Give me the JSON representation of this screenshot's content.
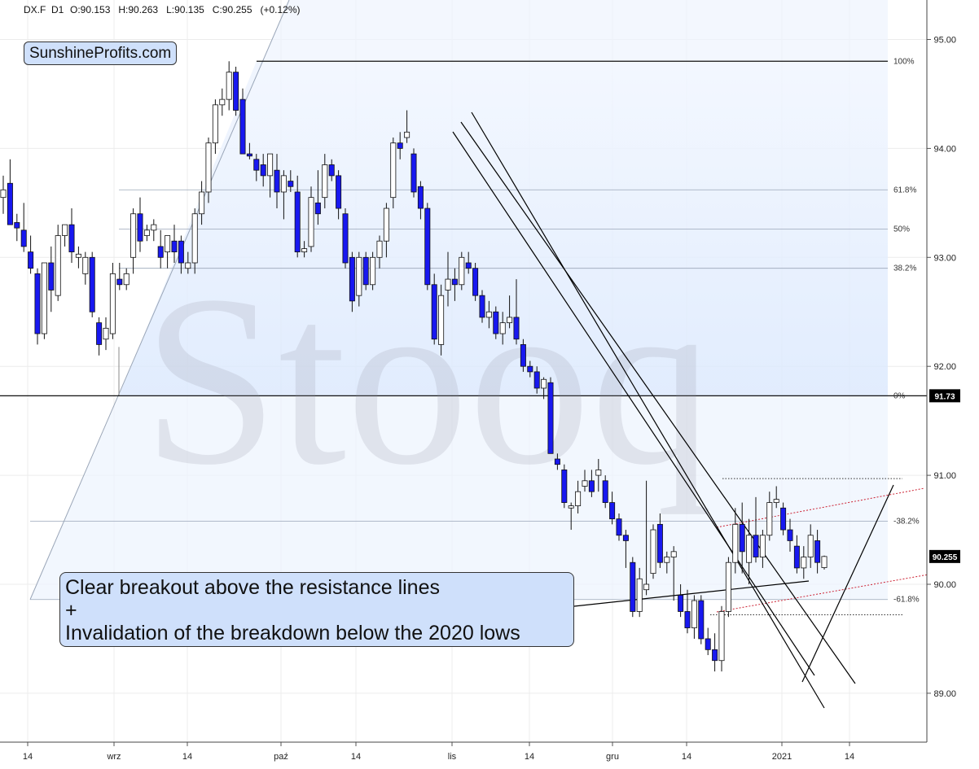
{
  "header": {
    "symbol": "DX.F",
    "interval": "D1",
    "ohlc": "O:90.153   H:90.263   L:90.135   C:90.255   (+0.12%)"
  },
  "logo": "SunshineProfits.com",
  "watermark": "Stooq",
  "callout": {
    "line1": "Clear breakout above the resistance lines",
    "line2": "+",
    "line3": "Invalidation of the breakdown below the 2020 lows"
  },
  "colors": {
    "bull_fill": "#ffffff",
    "bear_fill": "#1818f0",
    "fib_band": "#e8f1fe",
    "trend_line": "#000000",
    "channel_line": "#cc2233",
    "price_badge": "#000000"
  },
  "chart_data": {
    "type": "candlestick",
    "y_axis": {
      "ticks": [
        "95.00",
        "94.00",
        "93.00",
        "92.00",
        "91.00",
        "90.00",
        "89.00"
      ],
      "ylim": [
        88.6,
        95.3
      ]
    },
    "x_axis": {
      "ticks": [
        "14",
        "wrz",
        "14",
        "paź",
        "14",
        "lis",
        "14",
        "gru",
        "14",
        "2021",
        "14"
      ]
    },
    "fib_levels": [
      {
        "label": "100%",
        "value": 94.8
      },
      {
        "label": "61.8%",
        "value": 93.62
      },
      {
        "label": "50%",
        "value": 93.26
      },
      {
        "label": "38.2%",
        "value": 92.9
      },
      {
        "label": "0%",
        "value": 91.73
      },
      {
        "label": "-38.2%",
        "value": 90.58
      },
      {
        "label": "-61.8%",
        "value": 89.86
      }
    ],
    "badges": [
      {
        "label": "91.73",
        "value": 91.73
      },
      {
        "label": "90.255",
        "value": 90.255
      }
    ],
    "candles": [
      {
        "o": 93.55,
        "h": 93.75,
        "l": 93.4,
        "c": 93.62
      },
      {
        "o": 93.68,
        "h": 93.9,
        "l": 93.3,
        "c": 93.3
      },
      {
        "o": 93.32,
        "h": 93.4,
        "l": 93.15,
        "c": 93.27
      },
      {
        "o": 93.25,
        "h": 93.5,
        "l": 93.05,
        "c": 93.1
      },
      {
        "o": 93.05,
        "h": 93.2,
        "l": 92.85,
        "c": 92.9
      },
      {
        "o": 92.85,
        "h": 92.9,
        "l": 92.2,
        "c": 92.3
      },
      {
        "o": 92.3,
        "h": 92.95,
        "l": 92.25,
        "c": 92.95
      },
      {
        "o": 92.95,
        "h": 93.1,
        "l": 92.5,
        "c": 92.7
      },
      {
        "o": 92.65,
        "h": 93.3,
        "l": 92.6,
        "c": 93.2
      },
      {
        "o": 93.2,
        "h": 93.3,
        "l": 93.1,
        "c": 93.3
      },
      {
        "o": 93.3,
        "h": 93.45,
        "l": 92.95,
        "c": 93.05
      },
      {
        "o": 93.0,
        "h": 93.1,
        "l": 92.9,
        "c": 93.03
      },
      {
        "o": 92.85,
        "h": 93.05,
        "l": 92.75,
        "c": 93.0
      },
      {
        "o": 93.0,
        "h": 93.05,
        "l": 92.45,
        "c": 92.5
      },
      {
        "o": 92.4,
        "h": 92.45,
        "l": 92.1,
        "c": 92.2
      },
      {
        "o": 92.25,
        "h": 92.45,
        "l": 92.15,
        "c": 92.35
      },
      {
        "o": 92.3,
        "h": 92.95,
        "l": 92.25,
        "c": 92.85
      },
      {
        "o": 92.8,
        "h": 92.95,
        "l": 92.7,
        "c": 92.75
      },
      {
        "o": 92.75,
        "h": 92.9,
        "l": 92.7,
        "c": 92.85
      },
      {
        "o": 93.0,
        "h": 93.45,
        "l": 92.85,
        "c": 93.4
      },
      {
        "o": 93.4,
        "h": 93.55,
        "l": 93.05,
        "c": 93.15
      },
      {
        "o": 93.2,
        "h": 93.3,
        "l": 93.15,
        "c": 93.25
      },
      {
        "o": 93.25,
        "h": 93.35,
        "l": 93.15,
        "c": 93.3
      },
      {
        "o": 93.1,
        "h": 93.25,
        "l": 92.9,
        "c": 93.0
      },
      {
        "o": 93.05,
        "h": 93.2,
        "l": 92.9,
        "c": 93.2
      },
      {
        "o": 93.15,
        "h": 93.3,
        "l": 92.95,
        "c": 93.05
      },
      {
        "o": 93.15,
        "h": 93.2,
        "l": 92.85,
        "c": 92.95
      },
      {
        "o": 92.9,
        "h": 93.05,
        "l": 92.85,
        "c": 92.95
      },
      {
        "o": 92.95,
        "h": 93.45,
        "l": 92.85,
        "c": 93.4
      },
      {
        "o": 93.4,
        "h": 93.7,
        "l": 93.3,
        "c": 93.6
      },
      {
        "o": 93.6,
        "h": 94.1,
        "l": 93.5,
        "c": 94.05
      },
      {
        "o": 94.05,
        "h": 94.45,
        "l": 93.95,
        "c": 94.4
      },
      {
        "o": 94.4,
        "h": 94.55,
        "l": 94.3,
        "c": 94.45
      },
      {
        "o": 94.45,
        "h": 94.8,
        "l": 94.35,
        "c": 94.7
      },
      {
        "o": 94.7,
        "h": 94.75,
        "l": 94.3,
        "c": 94.35
      },
      {
        "o": 94.45,
        "h": 94.55,
        "l": 93.95,
        "c": 93.95
      },
      {
        "o": 93.95,
        "h": 94.05,
        "l": 93.9,
        "c": 93.93
      },
      {
        "o": 93.9,
        "h": 93.95,
        "l": 93.7,
        "c": 93.8
      },
      {
        "o": 93.85,
        "h": 93.95,
        "l": 93.65,
        "c": 93.75
      },
      {
        "o": 93.75,
        "h": 93.95,
        "l": 93.55,
        "c": 93.95
      },
      {
        "o": 93.8,
        "h": 93.95,
        "l": 93.45,
        "c": 93.6
      },
      {
        "o": 93.6,
        "h": 93.8,
        "l": 93.35,
        "c": 93.75
      },
      {
        "o": 93.7,
        "h": 93.8,
        "l": 93.6,
        "c": 93.65
      },
      {
        "o": 93.6,
        "h": 93.75,
        "l": 93.0,
        "c": 93.05
      },
      {
        "o": 93.05,
        "h": 93.15,
        "l": 93.0,
        "c": 93.08
      },
      {
        "o": 93.1,
        "h": 93.65,
        "l": 93.05,
        "c": 93.55
      },
      {
        "o": 93.5,
        "h": 93.8,
        "l": 93.3,
        "c": 93.4
      },
      {
        "o": 93.55,
        "h": 93.95,
        "l": 93.45,
        "c": 93.85
      },
      {
        "o": 93.85,
        "h": 93.9,
        "l": 93.7,
        "c": 93.75
      },
      {
        "o": 93.75,
        "h": 93.8,
        "l": 93.35,
        "c": 93.45
      },
      {
        "o": 93.4,
        "h": 93.45,
        "l": 92.9,
        "c": 92.95
      },
      {
        "o": 93.0,
        "h": 93.05,
        "l": 92.5,
        "c": 92.6
      },
      {
        "o": 92.65,
        "h": 93.05,
        "l": 92.55,
        "c": 93.0
      },
      {
        "o": 93.0,
        "h": 93.05,
        "l": 92.7,
        "c": 92.75
      },
      {
        "o": 92.75,
        "h": 93.05,
        "l": 92.7,
        "c": 93.0
      },
      {
        "o": 93.0,
        "h": 93.2,
        "l": 92.9,
        "c": 93.15
      },
      {
        "o": 93.15,
        "h": 93.5,
        "l": 93.0,
        "c": 93.45
      },
      {
        "o": 93.55,
        "h": 94.1,
        "l": 93.45,
        "c": 94.05
      },
      {
        "o": 94.05,
        "h": 94.15,
        "l": 93.9,
        "c": 94.0
      },
      {
        "o": 94.1,
        "h": 94.35,
        "l": 94.05,
        "c": 94.15
      },
      {
        "o": 93.95,
        "h": 94.0,
        "l": 93.55,
        "c": 93.6
      },
      {
        "o": 93.65,
        "h": 93.7,
        "l": 93.35,
        "c": 93.45
      },
      {
        "o": 93.45,
        "h": 93.5,
        "l": 92.7,
        "c": 92.75
      },
      {
        "o": 92.75,
        "h": 92.85,
        "l": 92.2,
        "c": 92.25
      },
      {
        "o": 92.2,
        "h": 92.75,
        "l": 92.1,
        "c": 92.65
      },
      {
        "o": 92.7,
        "h": 93.05,
        "l": 92.55,
        "c": 92.8
      },
      {
        "o": 92.8,
        "h": 92.9,
        "l": 92.6,
        "c": 92.75
      },
      {
        "o": 92.75,
        "h": 93.05,
        "l": 92.7,
        "c": 93.0
      },
      {
        "o": 92.95,
        "h": 93.05,
        "l": 92.85,
        "c": 92.9
      },
      {
        "o": 92.9,
        "h": 92.95,
        "l": 92.6,
        "c": 92.65
      },
      {
        "o": 92.65,
        "h": 92.7,
        "l": 92.4,
        "c": 92.45
      },
      {
        "o": 92.45,
        "h": 92.6,
        "l": 92.35,
        "c": 92.5
      },
      {
        "o": 92.5,
        "h": 92.55,
        "l": 92.25,
        "c": 92.3
      },
      {
        "o": 92.3,
        "h": 92.5,
        "l": 92.2,
        "c": 92.4
      },
      {
        "o": 92.4,
        "h": 92.65,
        "l": 92.35,
        "c": 92.45
      },
      {
        "o": 92.45,
        "h": 92.8,
        "l": 92.2,
        "c": 92.25
      },
      {
        "o": 92.2,
        "h": 92.25,
        "l": 91.95,
        "c": 92.0
      },
      {
        "o": 92.0,
        "h": 92.05,
        "l": 91.9,
        "c": 91.95
      },
      {
        "o": 91.95,
        "h": 92.0,
        "l": 91.75,
        "c": 91.8
      },
      {
        "o": 91.8,
        "h": 91.9,
        "l": 91.7,
        "c": 91.88
      },
      {
        "o": 91.85,
        "h": 91.9,
        "l": 91.2,
        "c": 91.2
      },
      {
        "o": 91.15,
        "h": 91.2,
        "l": 91.05,
        "c": 91.1
      },
      {
        "o": 91.05,
        "h": 91.1,
        "l": 90.7,
        "c": 90.75
      },
      {
        "o": 90.7,
        "h": 90.75,
        "l": 90.5,
        "c": 90.72
      },
      {
        "o": 90.72,
        "h": 90.95,
        "l": 90.65,
        "c": 90.85
      },
      {
        "o": 90.9,
        "h": 91.05,
        "l": 90.85,
        "c": 90.95
      },
      {
        "o": 90.95,
        "h": 91.05,
        "l": 90.8,
        "c": 90.85
      },
      {
        "o": 91.0,
        "h": 91.15,
        "l": 90.85,
        "c": 91.05
      },
      {
        "o": 90.95,
        "h": 91.0,
        "l": 90.7,
        "c": 90.75
      },
      {
        "o": 90.75,
        "h": 90.85,
        "l": 90.55,
        "c": 90.6
      },
      {
        "o": 90.6,
        "h": 90.65,
        "l": 90.4,
        "c": 90.45
      },
      {
        "o": 90.45,
        "h": 90.5,
        "l": 90.15,
        "c": 90.4
      },
      {
        "o": 90.2,
        "h": 90.25,
        "l": 89.7,
        "c": 89.75
      },
      {
        "o": 89.75,
        "h": 90.15,
        "l": 89.7,
        "c": 90.05
      },
      {
        "o": 89.95,
        "h": 90.95,
        "l": 89.9,
        "c": 90.0
      },
      {
        "o": 90.1,
        "h": 90.55,
        "l": 90.05,
        "c": 90.5
      },
      {
        "o": 90.55,
        "h": 90.65,
        "l": 90.15,
        "c": 90.2
      },
      {
        "o": 90.2,
        "h": 90.3,
        "l": 90.1,
        "c": 90.25
      },
      {
        "o": 90.25,
        "h": 90.35,
        "l": 89.85,
        "c": 90.3
      },
      {
        "o": 89.9,
        "h": 90.0,
        "l": 89.7,
        "c": 89.75
      },
      {
        "o": 89.75,
        "h": 89.95,
        "l": 89.55,
        "c": 89.6
      },
      {
        "o": 89.6,
        "h": 89.9,
        "l": 89.5,
        "c": 89.85
      },
      {
        "o": 89.85,
        "h": 89.9,
        "l": 89.45,
        "c": 89.5
      },
      {
        "o": 89.5,
        "h": 89.6,
        "l": 89.35,
        "c": 89.4
      },
      {
        "o": 89.4,
        "h": 89.55,
        "l": 89.2,
        "c": 89.3
      },
      {
        "o": 89.3,
        "h": 89.8,
        "l": 89.2,
        "c": 89.75
      },
      {
        "o": 89.75,
        "h": 90.25,
        "l": 89.7,
        "c": 90.2
      },
      {
        "o": 90.2,
        "h": 90.7,
        "l": 90.1,
        "c": 90.55
      },
      {
        "o": 90.55,
        "h": 90.75,
        "l": 90.1,
        "c": 90.3
      },
      {
        "o": 90.2,
        "h": 90.6,
        "l": 90.0,
        "c": 90.45
      },
      {
        "o": 90.45,
        "h": 90.8,
        "l": 90.2,
        "c": 90.25
      },
      {
        "o": 90.25,
        "h": 90.5,
        "l": 90.15,
        "c": 90.45
      },
      {
        "o": 90.45,
        "h": 90.85,
        "l": 90.4,
        "c": 90.75
      },
      {
        "o": 90.75,
        "h": 90.9,
        "l": 90.7,
        "c": 90.78
      },
      {
        "o": 90.7,
        "h": 90.75,
        "l": 90.45,
        "c": 90.5
      },
      {
        "o": 90.5,
        "h": 90.6,
        "l": 90.3,
        "c": 90.4
      },
      {
        "o": 90.35,
        "h": 90.45,
        "l": 90.1,
        "c": 90.15
      },
      {
        "o": 90.15,
        "h": 90.35,
        "l": 90.05,
        "c": 90.25
      },
      {
        "o": 90.25,
        "h": 90.55,
        "l": 90.15,
        "c": 90.45
      },
      {
        "o": 90.4,
        "h": 90.5,
        "l": 90.1,
        "c": 90.2
      },
      {
        "o": 90.153,
        "h": 90.263,
        "l": 90.135,
        "c": 90.255
      }
    ]
  }
}
